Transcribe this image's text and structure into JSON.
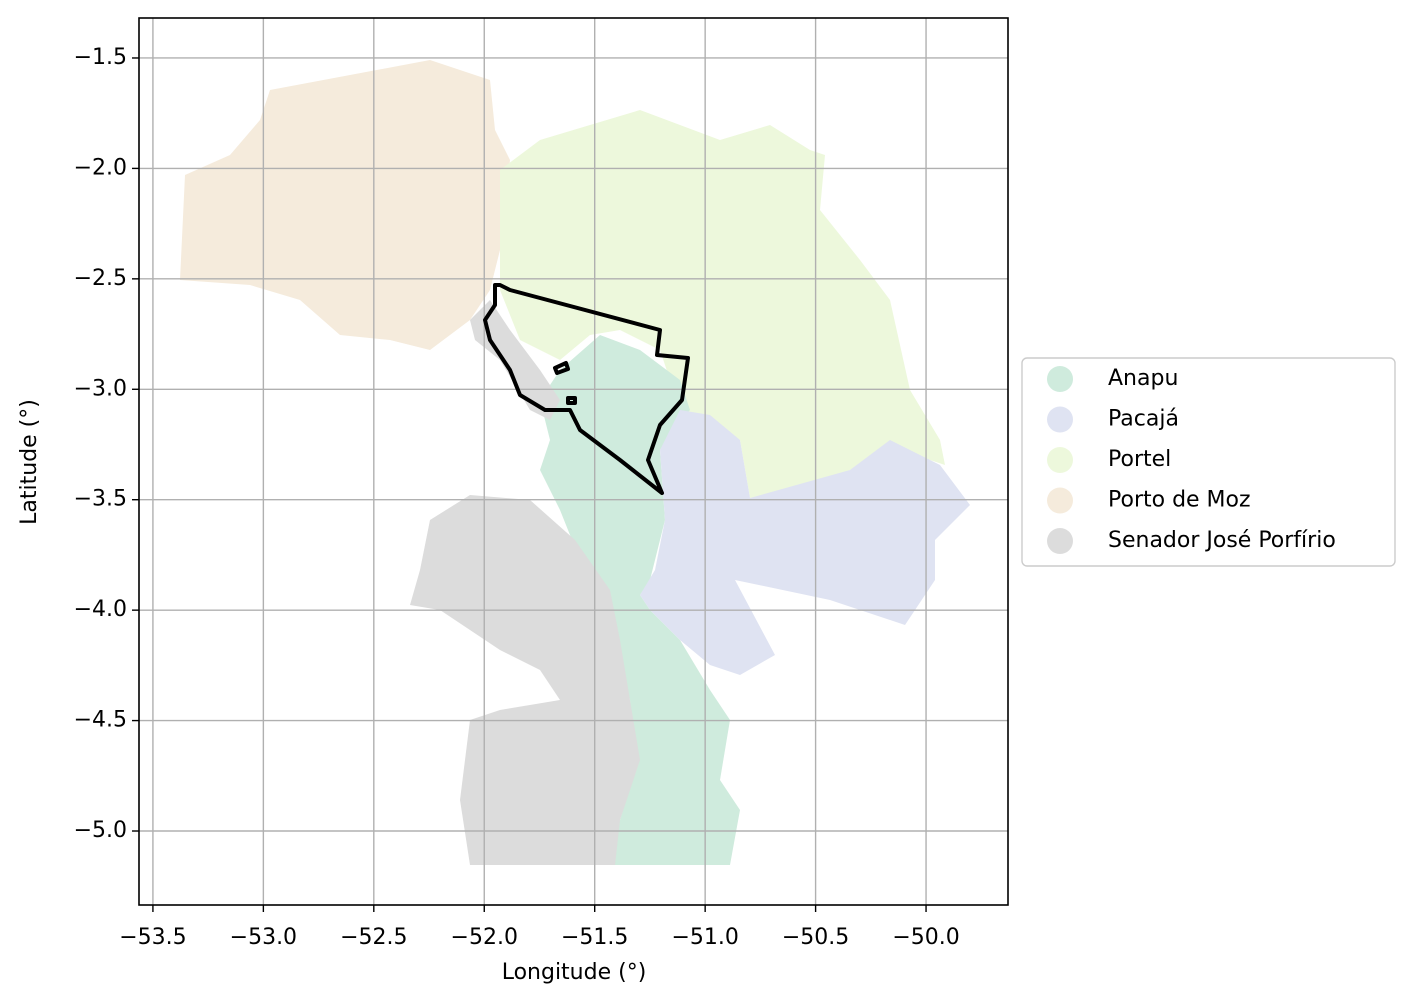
{
  "chart_data": {
    "type": "map",
    "xlabel": "Longitude (°)",
    "ylabel": "Latitude (°)",
    "xlim": [
      -53.563,
      -49.629
    ],
    "ylim": [
      -5.335,
      -1.319
    ],
    "xticks": [
      {
        "value": -53.5,
        "label": "−53.5"
      },
      {
        "value": -53.0,
        "label": "−53.0"
      },
      {
        "value": -52.5,
        "label": "−52.5"
      },
      {
        "value": -52.0,
        "label": "−52.0"
      },
      {
        "value": -51.5,
        "label": "−51.5"
      },
      {
        "value": -51.0,
        "label": "−51.0"
      },
      {
        "value": -50.5,
        "label": "−50.5"
      },
      {
        "value": -50.0,
        "label": "−50.0"
      }
    ],
    "yticks": [
      {
        "value": -1.5,
        "label": "−1.5"
      },
      {
        "value": -2.0,
        "label": "−2.0"
      },
      {
        "value": -2.5,
        "label": "−2.5"
      },
      {
        "value": -3.0,
        "label": "−3.0"
      },
      {
        "value": -3.5,
        "label": "−3.5"
      },
      {
        "value": -4.0,
        "label": "−4.0"
      },
      {
        "value": -4.5,
        "label": "−4.5"
      },
      {
        "value": -5.0,
        "label": "−5.0"
      }
    ],
    "grid": true,
    "legend_position": "right",
    "series": [
      {
        "name": "Anapu",
        "color": "#cfebdd"
      },
      {
        "name": "Pacajá",
        "color": "#dfe3f2"
      },
      {
        "name": "Portel",
        "color": "#edf8dc"
      },
      {
        "name": "Porto de Moz",
        "color": "#f5ebdc"
      },
      {
        "name": "Senador José Porfírio",
        "color": "#dcdcdc"
      }
    ]
  }
}
